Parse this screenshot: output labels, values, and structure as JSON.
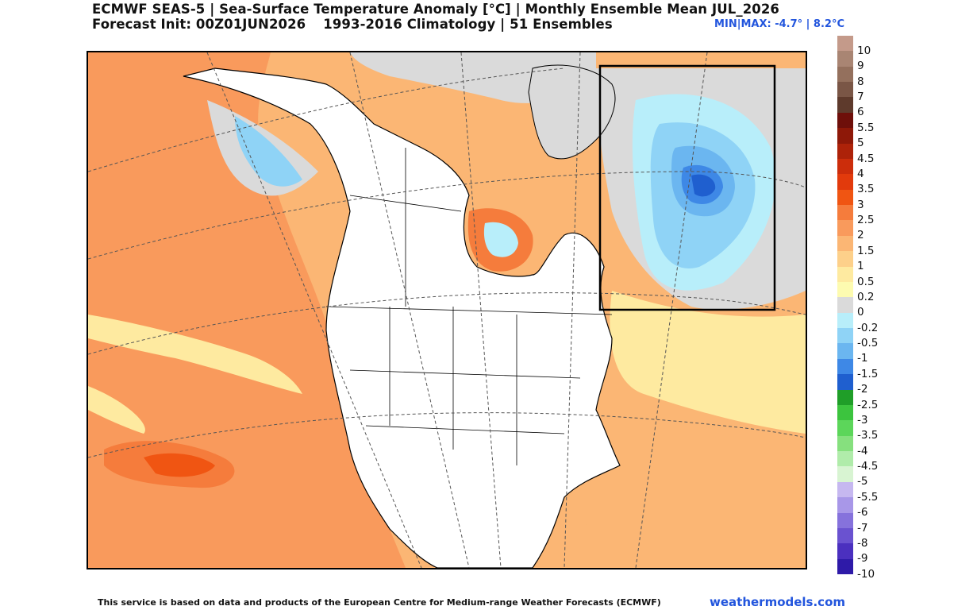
{
  "header": {
    "title_line1": "ECMWF SEAS-5 | Sea-Surface Temperature Anomaly [°C] | Monthly Ensemble Mean JUL_2026",
    "title_line2_left": "Forecast Init: 00Z01JUN2026",
    "title_line2_right": "1993-2016 Climatology | 51 Ensembles",
    "minmax": "MIN|MAX: -4.7° | 8.2°C"
  },
  "colorbar": {
    "labels": [
      "10",
      "9",
      "8",
      "7",
      "6",
      "5.5",
      "5",
      "4.5",
      "4",
      "3.5",
      "3",
      "2.5",
      "2",
      "1.5",
      "1",
      "0.5",
      "0.2",
      "0",
      "-0.2",
      "-0.5",
      "-1",
      "-1.5",
      "-2",
      "-2.5",
      "-3",
      "-3.5",
      "-4",
      "-4.5",
      "-5",
      "-5.5",
      "-6",
      "-7",
      "-8",
      "-9",
      "-10"
    ],
    "colors": [
      "#c49a8a",
      "#a98573",
      "#94705d",
      "#7a5646",
      "#5e3a2c",
      "#6e0f0a",
      "#8e1808",
      "#ad2209",
      "#cc2d0b",
      "#e23a0c",
      "#f05512",
      "#f57c3c",
      "#f99a5c",
      "#fbb674",
      "#fdd08a",
      "#feeaa0",
      "#fdfbb0",
      "#dadada",
      "#b8eefa",
      "#8fd3f6",
      "#6bb6f0",
      "#3e88e6",
      "#1f5fcf",
      "#1f9e28",
      "#3cc43e",
      "#5cd65a",
      "#86e07e",
      "#b0ecaa",
      "#d8f4d2",
      "#c6b8f0",
      "#a897e8",
      "#8672dc",
      "#6a52d0",
      "#4b30bf",
      "#2e1aa8"
    ]
  },
  "map": {
    "highlight_box": "present",
    "features": [
      "sst-anomaly-field",
      "land-mask",
      "coastlines",
      "political-borders",
      "graticule"
    ]
  },
  "footer": {
    "attribution": "This service is based on data and products of the European Centre for Medium-range Weather Forecasts (ECMWF)",
    "brand": "weathermodels.com"
  }
}
